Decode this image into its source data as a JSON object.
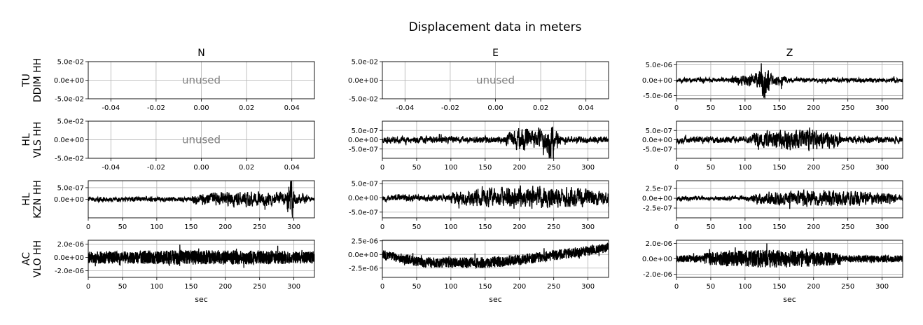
{
  "figure": {
    "title": "Displacement data in meters",
    "columns": [
      "N",
      "E",
      "Z"
    ],
    "rows": [
      [
        "TU",
        "DDIM HH"
      ],
      [
        "HL",
        "VLS HH"
      ],
      [
        "HL",
        "KZN HH"
      ],
      [
        "AC",
        "VLO HH"
      ]
    ],
    "xlabel": "sec",
    "unused_label": "unused",
    "line_color": "#000000",
    "grid_color": "#b0b0b0",
    "grid": true
  },
  "chart_data": [
    {
      "type": "line",
      "title": "N",
      "station": "TU DDIM HH",
      "unused": true,
      "xlim": [
        -0.05,
        0.05
      ],
      "ylim": [
        -0.05,
        0.05
      ],
      "xticks": [
        -0.04,
        -0.02,
        0.0,
        0.02,
        0.04
      ],
      "xtick_labels": [
        "-0.04",
        "-0.02",
        "0.00",
        "0.02",
        "0.04"
      ],
      "yticks": [
        0.05,
        0.0,
        -0.05
      ],
      "ytick_labels": [
        "5.0e-02",
        "0.0e+00",
        "-5.0e-02"
      ]
    },
    {
      "type": "line",
      "title": "E",
      "station": "TU DDIM HH",
      "unused": true,
      "xlim": [
        -0.05,
        0.05
      ],
      "ylim": [
        -0.05,
        0.05
      ],
      "xticks": [
        -0.04,
        -0.02,
        0.0,
        0.02,
        0.04
      ],
      "xtick_labels": [
        "-0.04",
        "-0.02",
        "0.00",
        "0.02",
        "0.04"
      ],
      "yticks": [
        0.05,
        0.0,
        -0.05
      ],
      "ytick_labels": [
        "5.0e-02",
        "0.0e+00",
        "-5.0e-02"
      ]
    },
    {
      "type": "line",
      "title": "Z",
      "station": "TU DDIM HH",
      "unused": false,
      "xlim": [
        0,
        330
      ],
      "ylim": [
        -6e-06,
        6e-06
      ],
      "xticks": [
        0,
        50,
        100,
        150,
        200,
        250,
        300
      ],
      "xtick_labels": [
        "0",
        "50",
        "100",
        "150",
        "200",
        "250",
        "300"
      ],
      "yticks": [
        5e-06,
        0,
        -5e-06
      ],
      "ytick_labels": [
        "5.0e-06",
        "0.0e+00",
        "-5.0e-06"
      ],
      "signal": {
        "duration": 330,
        "amplitude": 1e-06,
        "bursts": [
          [
            120,
            135,
            5e-06
          ],
          [
            80,
            160,
            2e-06
          ]
        ],
        "seed": 11
      }
    },
    {
      "type": "line",
      "title": "N",
      "station": "HL VLS HH",
      "unused": true,
      "xlim": [
        -0.05,
        0.05
      ],
      "ylim": [
        -0.05,
        0.05
      ],
      "xticks": [
        -0.04,
        -0.02,
        0.0,
        0.02,
        0.04
      ],
      "xtick_labels": [
        "-0.04",
        "-0.02",
        "0.00",
        "0.02",
        "0.04"
      ],
      "yticks": [
        0.05,
        0.0,
        -0.05
      ],
      "ytick_labels": [
        "5.0e-02",
        "0.0e+00",
        "-5.0e-02"
      ]
    },
    {
      "type": "line",
      "station": "HL VLS HH",
      "unused": false,
      "xlim": [
        0,
        330
      ],
      "ylim": [
        -1e-06,
        1e-06
      ],
      "xticks": [
        0,
        50,
        100,
        150,
        200,
        250,
        300
      ],
      "xtick_labels": [
        "0",
        "50",
        "100",
        "150",
        "200",
        "250",
        "300"
      ],
      "yticks": [
        5e-07,
        0,
        -5e-07
      ],
      "ytick_labels": [
        "5.0e-07",
        "0.0e+00",
        "-5.0e-07"
      ],
      "signal": {
        "duration": 330,
        "amplitude": 2.5e-07,
        "bursts": [
          [
            180,
            260,
            6e-07
          ],
          [
            240,
            250,
            1e-06
          ]
        ],
        "seed": 23
      }
    },
    {
      "type": "line",
      "station": "HL VLS HH",
      "unused": false,
      "xlim": [
        0,
        330
      ],
      "ylim": [
        -1e-06,
        1e-06
      ],
      "xticks": [
        0,
        50,
        100,
        150,
        200,
        250,
        300
      ],
      "xtick_labels": [
        "0",
        "50",
        "100",
        "150",
        "200",
        "250",
        "300"
      ],
      "yticks": [
        5e-07,
        0,
        -5e-07
      ],
      "ytick_labels": [
        "5.0e-07",
        "0.0e+00",
        "-5.0e-07"
      ],
      "signal": {
        "duration": 330,
        "amplitude": 2.5e-07,
        "bursts": [
          [
            110,
            240,
            5.5e-07
          ]
        ],
        "seed": 37
      }
    },
    {
      "type": "line",
      "station": "HL KZN HH",
      "unused": false,
      "xlim": [
        0,
        330
      ],
      "ylim": [
        -8e-07,
        8e-07
      ],
      "xticks": [
        0,
        50,
        100,
        150,
        200,
        250,
        300
      ],
      "xtick_labels": [
        "0",
        "50",
        "100",
        "150",
        "200",
        "250",
        "300"
      ],
      "yticks": [
        5e-07,
        0
      ],
      "ytick_labels": [
        "5.0e-07",
        "0.0e+00"
      ],
      "signal": {
        "duration": 330,
        "amplitude": 1.4e-07,
        "bursts": [
          [
            150,
            320,
            3e-07
          ],
          [
            290,
            300,
            9e-07
          ]
        ],
        "seed": 41
      }
    },
    {
      "type": "line",
      "station": "HL KZN HH",
      "unused": false,
      "xlim": [
        0,
        330
      ],
      "ylim": [
        -7e-07,
        6e-07
      ],
      "xticks": [
        0,
        50,
        100,
        150,
        200,
        250,
        300
      ],
      "xtick_labels": [
        "0",
        "50",
        "100",
        "150",
        "200",
        "250",
        "300"
      ],
      "yticks": [
        5e-07,
        0,
        -5e-07
      ],
      "ytick_labels": [
        "5.0e-07",
        "0.0e+00",
        "-5.0e-07"
      ],
      "signal": {
        "duration": 330,
        "amplitude": 1.6e-07,
        "bursts": [
          [
            100,
            330,
            3.5e-07
          ]
        ],
        "seed": 53
      }
    },
    {
      "type": "line",
      "station": "HL KZN HH",
      "unused": false,
      "xlim": [
        0,
        330
      ],
      "ylim": [
        -5e-07,
        4.5e-07
      ],
      "xticks": [
        0,
        50,
        100,
        150,
        200,
        250,
        300
      ],
      "xtick_labels": [
        "0",
        "50",
        "100",
        "150",
        "200",
        "250",
        "300"
      ],
      "yticks": [
        2.5e-07,
        0,
        -2.5e-07
      ],
      "ytick_labels": [
        "2.5e-07",
        "0.0e+00",
        "-2.5e-07"
      ],
      "signal": {
        "duration": 330,
        "amplitude": 8e-08,
        "bursts": [
          [
            110,
            320,
            2e-07
          ]
        ],
        "seed": 67
      }
    },
    {
      "type": "line",
      "station": "AC VLO HH",
      "unused": false,
      "xlim": [
        0,
        330
      ],
      "ylim": [
        -3e-06,
        2.6e-06
      ],
      "xticks": [
        0,
        50,
        100,
        150,
        200,
        250,
        300
      ],
      "xtick_labels": [
        "0",
        "50",
        "100",
        "150",
        "200",
        "250",
        "300"
      ],
      "yticks": [
        2e-06,
        0,
        -2e-06
      ],
      "ytick_labels": [
        "2.0e-06",
        "0.0e+00",
        "-2.0e-06"
      ],
      "signal": {
        "duration": 330,
        "amplitude": 7e-07,
        "bursts": [
          [
            0,
            330,
            4e-07
          ]
        ],
        "seed": 79,
        "hf": true
      }
    },
    {
      "type": "line",
      "station": "AC VLO HH",
      "unused": false,
      "xlim": [
        0,
        330
      ],
      "ylim": [
        -4.2e-06,
        2.6e-06
      ],
      "xticks": [
        0,
        50,
        100,
        150,
        200,
        250,
        300
      ],
      "xtick_labels": [
        "0",
        "50",
        "100",
        "150",
        "200",
        "250",
        "300"
      ],
      "yticks": [
        2.5e-06,
        0,
        -2.5e-06
      ],
      "ytick_labels": [
        "2.5e-06",
        "0.0e+00",
        "-2.5e-06"
      ],
      "signal": {
        "duration": 330,
        "amplitude": 7e-07,
        "bursts": [
          [
            0,
            330,
            3e-07
          ]
        ],
        "seed": 83,
        "hf": true,
        "trend": [
          [
            0,
            0
          ],
          [
            60,
            -1.5e-06
          ],
          [
            150,
            -1.5e-06
          ],
          [
            200,
            -1e-06
          ],
          [
            330,
            1.2e-06
          ]
        ]
      }
    },
    {
      "type": "line",
      "station": "AC VLO HH",
      "unused": false,
      "xlim": [
        0,
        330
      ],
      "ylim": [
        -2.4e-06,
        2.4e-06
      ],
      "xticks": [
        0,
        50,
        100,
        150,
        200,
        250,
        300
      ],
      "xtick_labels": [
        "0",
        "50",
        "100",
        "150",
        "200",
        "250",
        "300"
      ],
      "yticks": [
        2e-06,
        0,
        -2e-06
      ],
      "ytick_labels": [
        "2.0e-06",
        "0.0e+00",
        "-2.0e-06"
      ],
      "signal": {
        "duration": 330,
        "amplitude": 4.5e-07,
        "bursts": [
          [
            40,
            240,
            7e-07
          ]
        ],
        "seed": 97,
        "hf": true
      }
    }
  ]
}
